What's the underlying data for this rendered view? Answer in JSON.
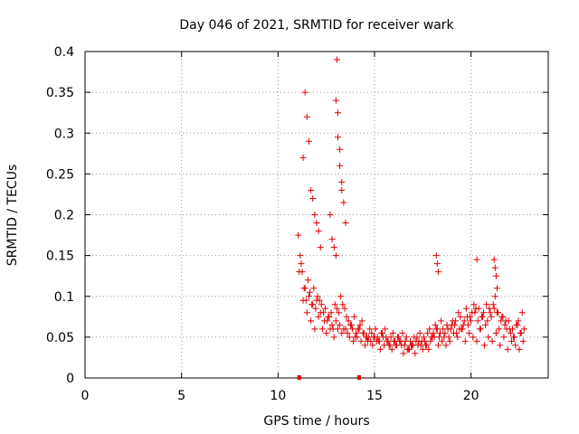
{
  "chart_data": {
    "type": "scatter",
    "title": "Day 046 of 2021, SRMTID for receiver wark",
    "xlabel": "GPS time / hours",
    "ylabel": "SRMTID / TECUs",
    "xlim": [
      0,
      24
    ],
    "ylim": [
      0,
      0.4
    ],
    "grid": true,
    "marker": "+",
    "color": "#e00000",
    "x_ticks": [
      0,
      5,
      10,
      15,
      20
    ],
    "x_tick_labels": [
      "0",
      "5",
      "10",
      "15",
      "20"
    ],
    "y_ticks": [
      0,
      0.05,
      0.1,
      0.15,
      0.2,
      0.25,
      0.3,
      0.35,
      0.4
    ],
    "y_tick_labels": [
      "0",
      "0.05",
      "0.1",
      "0.15",
      "0.2",
      "0.25",
      "0.3",
      "0.35",
      "0.4"
    ],
    "series": [
      {
        "name": "SRMTID",
        "x": [
          11.05,
          11.15,
          11.25,
          11.35,
          11.45,
          11.55,
          11.65,
          11.75,
          11.85,
          11.95,
          12.05,
          12.15,
          12.25,
          12.35,
          12.45,
          12.55,
          12.65,
          12.75,
          12.85,
          12.95,
          13.05,
          13.15,
          13.25,
          13.35,
          13.45,
          13.55,
          13.65,
          13.75,
          13.85,
          13.95,
          14.05,
          14.15,
          14.25,
          14.35,
          14.45,
          14.55,
          14.65,
          14.75,
          14.85,
          14.95,
          15.05,
          15.15,
          15.25,
          15.35,
          15.45,
          15.55,
          15.65,
          15.75,
          15.85,
          15.95,
          16.05,
          16.15,
          16.25,
          16.35,
          16.45,
          16.55,
          16.65,
          16.75,
          16.85,
          16.95,
          17.05,
          17.15,
          17.25,
          17.35,
          17.45,
          17.55,
          17.65,
          17.75,
          17.85,
          17.95,
          18.05,
          18.15,
          18.25,
          18.35,
          18.45,
          18.55,
          18.65,
          18.75,
          18.85,
          18.95,
          19.05,
          19.15,
          19.25,
          19.35,
          19.45,
          19.55,
          19.65,
          19.75,
          19.85,
          19.95,
          20.05,
          20.15,
          20.25,
          20.35,
          20.45,
          20.55,
          20.65,
          20.75,
          20.85,
          20.95,
          21.05,
          21.15,
          21.25,
          21.35,
          21.45,
          21.55,
          21.65,
          21.75,
          21.85,
          21.95,
          22.05,
          22.15,
          22.25,
          22.35,
          22.45,
          22.55,
          22.65,
          22.75,
          11.1,
          11.3,
          11.5,
          11.7,
          11.9,
          12.1,
          12.3,
          12.5,
          12.7,
          12.9,
          13.1,
          13.3,
          13.5,
          13.7,
          13.9,
          14.1,
          14.3,
          14.5,
          14.7,
          14.9,
          15.1,
          15.3,
          15.5,
          15.7,
          15.9,
          16.1,
          16.3,
          16.5,
          16.7,
          16.9,
          17.1,
          17.3,
          17.5,
          17.7,
          17.9,
          18.1,
          18.3,
          18.5,
          18.7,
          18.9,
          19.1,
          19.3,
          19.5,
          19.7,
          19.9,
          20.1,
          20.3,
          20.5,
          20.7,
          20.9,
          21.1,
          21.3,
          21.5,
          21.7,
          21.9,
          22.1,
          22.3,
          22.5,
          22.7,
          11.2,
          11.4,
          11.6,
          11.8,
          12.0,
          12.2,
          12.4,
          12.6,
          12.8,
          13.0,
          13.2,
          13.4,
          13.6,
          13.8,
          14.0,
          14.2,
          14.4,
          14.6,
          14.8,
          15.0,
          15.2,
          15.4,
          15.6,
          15.8,
          16.0,
          16.2,
          16.4,
          16.6,
          16.8,
          17.0,
          17.2,
          17.4,
          17.6,
          17.8,
          18.0,
          18.2,
          18.4,
          18.6,
          18.8,
          19.0,
          19.2,
          19.4,
          19.6,
          19.8,
          20.0,
          20.2,
          20.4,
          20.6,
          20.8,
          21.0,
          21.2,
          21.4,
          21.6,
          21.8,
          22.0,
          22.2,
          22.4,
          22.6,
          11.3,
          11.4,
          11.5,
          11.6,
          11.7,
          11.8,
          11.9,
          12.0,
          12.1,
          12.2,
          12.7,
          12.8,
          12.9,
          13.0,
          13.0,
          13.05,
          13.1,
          13.1,
          13.2,
          13.2,
          13.3,
          13.3,
          13.4,
          13.5,
          18.2,
          18.25,
          18.3,
          20.3,
          21.2,
          21.25,
          21.3,
          21.35
        ],
        "y": [
          0.175,
          0.15,
          0.13,
          0.11,
          0.095,
          0.12,
          0.105,
          0.09,
          0.11,
          0.085,
          0.1,
          0.095,
          0.09,
          0.08,
          0.085,
          0.07,
          0.075,
          0.08,
          0.06,
          0.09,
          0.085,
          0.08,
          0.1,
          0.09,
          0.085,
          0.075,
          0.07,
          0.065,
          0.06,
          0.075,
          0.055,
          0.06,
          0.065,
          0.07,
          0.055,
          0.05,
          0.045,
          0.06,
          0.055,
          0.05,
          0.06,
          0.05,
          0.045,
          0.055,
          0.05,
          0.06,
          0.045,
          0.04,
          0.05,
          0.055,
          0.045,
          0.04,
          0.05,
          0.045,
          0.055,
          0.04,
          0.05,
          0.035,
          0.045,
          0.04,
          0.05,
          0.045,
          0.04,
          0.055,
          0.045,
          0.05,
          0.04,
          0.055,
          0.06,
          0.05,
          0.055,
          0.065,
          0.06,
          0.05,
          0.07,
          0.06,
          0.055,
          0.065,
          0.05,
          0.06,
          0.07,
          0.065,
          0.055,
          0.08,
          0.075,
          0.06,
          0.07,
          0.085,
          0.065,
          0.075,
          0.08,
          0.09,
          0.085,
          0.07,
          0.06,
          0.075,
          0.08,
          0.065,
          0.07,
          0.085,
          0.075,
          0.09,
          0.1,
          0.08,
          0.06,
          0.07,
          0.075,
          0.065,
          0.06,
          0.07,
          0.055,
          0.06,
          0.05,
          0.065,
          0.07,
          0.055,
          0.08,
          0.06,
          0.13,
          0.095,
          0.08,
          0.07,
          0.06,
          0.075,
          0.06,
          0.055,
          0.06,
          0.05,
          0.06,
          0.055,
          0.06,
          0.05,
          0.045,
          0.05,
          0.045,
          0.04,
          0.05,
          0.04,
          0.045,
          0.035,
          0.04,
          0.045,
          0.035,
          0.04,
          0.045,
          0.03,
          0.035,
          0.04,
          0.03,
          0.045,
          0.035,
          0.04,
          0.045,
          0.05,
          0.04,
          0.045,
          0.04,
          0.045,
          0.055,
          0.05,
          0.06,
          0.045,
          0.055,
          0.05,
          0.045,
          0.06,
          0.04,
          0.05,
          0.045,
          0.055,
          0.04,
          0.05,
          0.035,
          0.045,
          0.04,
          0.035,
          0.045,
          0.14,
          0.11,
          0.1,
          0.09,
          0.095,
          0.08,
          0.07,
          0.075,
          0.065,
          0.07,
          0.065,
          0.06,
          0.055,
          0.065,
          0.05,
          0.06,
          0.055,
          0.05,
          0.045,
          0.05,
          0.045,
          0.055,
          0.05,
          0.04,
          0.045,
          0.05,
          0.04,
          0.045,
          0.035,
          0.04,
          0.05,
          0.04,
          0.045,
          0.035,
          0.05,
          0.06,
          0.055,
          0.05,
          0.06,
          0.065,
          0.07,
          0.06,
          0.065,
          0.075,
          0.07,
          0.08,
          0.085,
          0.075,
          0.09,
          0.08,
          0.085,
          0.08,
          0.075,
          0.07,
          0.06,
          0.05,
          0.065,
          0.055,
          0.27,
          0.35,
          0.32,
          0.29,
          0.23,
          0.22,
          0.2,
          0.19,
          0.18,
          0.16,
          0.2,
          0.17,
          0.16,
          0.15,
          0.34,
          0.39,
          0.325,
          0.295,
          0.28,
          0.26,
          0.24,
          0.23,
          0.215,
          0.19,
          0.15,
          0.14,
          0.13,
          0.145,
          0.145,
          0.135,
          0.125,
          0.11
        ]
      },
      {
        "name": "zero markers",
        "x": [
          11.1,
          14.2
        ],
        "y": [
          0.0,
          0.0
        ]
      }
    ]
  }
}
